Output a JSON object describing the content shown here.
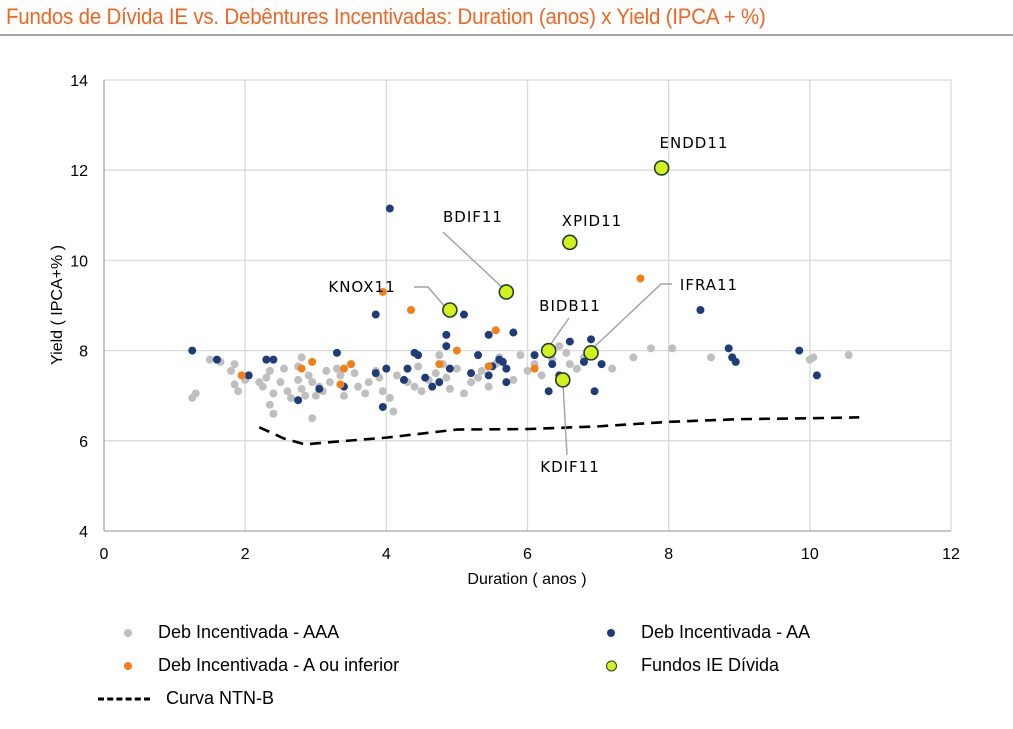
{
  "page": {
    "title": "Fundos de Dívida IE vs. Debêntures Incentivadas: Duration (anos) x Yield (IPCA + %)"
  },
  "colors": {
    "title": "#f26522",
    "aaa": "#bfbfbf",
    "aa": "#1f3c7a",
    "a_or_lower": "#f57f17",
    "funds_fill": "#d4f21a",
    "funds_stroke": "#1f3f38",
    "ntnb": "#000000",
    "grid": "#d9d9d9"
  },
  "legend": {
    "items": [
      {
        "key": "aaa",
        "label": "Deb Incentivada - AAA",
        "marker": "dot"
      },
      {
        "key": "aa",
        "label": "Deb Incentivada - AA",
        "marker": "dot"
      },
      {
        "key": "a_or_lower",
        "label": "Deb Incentivada - A ou inferior",
        "marker": "dot"
      },
      {
        "key": "funds",
        "label": "Fundos IE Dívida",
        "marker": "ring"
      },
      {
        "key": "ntnb",
        "label": "Curva NTN-B",
        "marker": "dash"
      }
    ]
  },
  "chart_data": {
    "type": "scatter",
    "title": "Fundos de Dívida IE vs. Debêntures Incentivadas: Duration (anos) x Yield (IPCA + %)",
    "xlabel": "Duration ( anos )",
    "ylabel": "Yield ( IPCA+% )",
    "xlim": [
      0,
      12
    ],
    "ylim": [
      4,
      14
    ],
    "xticks": [
      "0",
      "2",
      "4",
      "6",
      "8",
      "10",
      "12"
    ],
    "yticks": [
      "4",
      "6",
      "8",
      "10",
      "12",
      "14"
    ],
    "grid": true,
    "legend_position": "bottom",
    "series": [
      {
        "name": "Deb Incentivada - AAA",
        "key": "aaa",
        "points": [
          [
            1.25,
            6.95
          ],
          [
            1.3,
            7.05
          ],
          [
            1.5,
            7.8
          ],
          [
            1.8,
            7.55
          ],
          [
            1.85,
            7.7
          ],
          [
            1.85,
            7.25
          ],
          [
            1.9,
            7.1
          ],
          [
            2.0,
            7.35
          ],
          [
            2.2,
            7.3
          ],
          [
            2.25,
            7.2
          ],
          [
            2.3,
            7.4
          ],
          [
            2.35,
            7.55
          ],
          [
            2.4,
            7.05
          ],
          [
            2.35,
            6.8
          ],
          [
            2.4,
            6.6
          ],
          [
            2.5,
            7.3
          ],
          [
            2.6,
            7.1
          ],
          [
            2.65,
            6.95
          ],
          [
            2.75,
            7.35
          ],
          [
            2.75,
            7.65
          ],
          [
            2.8,
            7.85
          ],
          [
            2.8,
            7.15
          ],
          [
            2.85,
            7.0
          ],
          [
            2.9,
            7.45
          ],
          [
            2.95,
            7.3
          ],
          [
            2.95,
            6.5
          ],
          [
            3.0,
            7.0
          ],
          [
            3.05,
            7.2
          ],
          [
            3.1,
            7.1
          ],
          [
            3.2,
            7.3
          ],
          [
            3.3,
            7.6
          ],
          [
            3.35,
            7.45
          ],
          [
            3.4,
            7.0
          ],
          [
            3.5,
            7.7
          ],
          [
            3.55,
            7.5
          ],
          [
            3.6,
            7.2
          ],
          [
            3.7,
            7.05
          ],
          [
            3.75,
            7.3
          ],
          [
            3.85,
            7.55
          ],
          [
            3.9,
            7.4
          ],
          [
            3.95,
            7.1
          ],
          [
            4.0,
            7.6
          ],
          [
            4.05,
            6.95
          ],
          [
            4.1,
            6.65
          ],
          [
            4.15,
            7.45
          ],
          [
            4.3,
            7.3
          ],
          [
            4.4,
            7.2
          ],
          [
            4.5,
            7.1
          ],
          [
            4.6,
            7.35
          ],
          [
            4.7,
            7.5
          ],
          [
            4.75,
            7.9
          ],
          [
            4.8,
            7.7
          ],
          [
            4.85,
            7.4
          ],
          [
            4.9,
            7.15
          ],
          [
            5.0,
            7.6
          ],
          [
            5.1,
            7.05
          ],
          [
            5.2,
            7.3
          ],
          [
            5.3,
            7.4
          ],
          [
            5.45,
            7.2
          ],
          [
            5.55,
            7.7
          ],
          [
            5.6,
            7.85
          ],
          [
            5.7,
            7.6
          ],
          [
            5.8,
            7.35
          ],
          [
            5.9,
            7.9
          ],
          [
            6.0,
            7.55
          ],
          [
            6.1,
            7.7
          ],
          [
            6.2,
            7.45
          ],
          [
            6.35,
            7.8
          ],
          [
            6.45,
            8.1
          ],
          [
            6.55,
            7.95
          ],
          [
            6.6,
            7.7
          ],
          [
            6.7,
            7.6
          ],
          [
            6.8,
            7.85
          ],
          [
            7.05,
            7.7
          ],
          [
            7.2,
            7.6
          ],
          [
            7.5,
            7.85
          ],
          [
            7.75,
            8.05
          ],
          [
            8.05,
            8.05
          ],
          [
            8.6,
            7.85
          ],
          [
            10.0,
            7.8
          ],
          [
            10.05,
            7.85
          ],
          [
            10.55,
            7.9
          ],
          [
            1.65,
            7.75
          ],
          [
            2.55,
            7.6
          ],
          [
            3.15,
            7.55
          ],
          [
            4.45,
            7.65
          ],
          [
            5.35,
            7.55
          ]
        ]
      },
      {
        "name": "Deb Incentivada - AA",
        "key": "aa",
        "points": [
          [
            1.25,
            8.0
          ],
          [
            1.6,
            7.8
          ],
          [
            2.05,
            7.45
          ],
          [
            2.3,
            7.8
          ],
          [
            2.4,
            7.8
          ],
          [
            2.75,
            6.9
          ],
          [
            3.05,
            7.15
          ],
          [
            3.3,
            7.95
          ],
          [
            3.4,
            7.2
          ],
          [
            3.85,
            8.8
          ],
          [
            3.85,
            7.5
          ],
          [
            3.95,
            6.75
          ],
          [
            4.05,
            11.15
          ],
          [
            4.25,
            7.35
          ],
          [
            4.3,
            7.6
          ],
          [
            4.4,
            7.95
          ],
          [
            4.45,
            7.9
          ],
          [
            4.55,
            7.4
          ],
          [
            4.65,
            7.2
          ],
          [
            4.75,
            7.3
          ],
          [
            4.85,
            8.1
          ],
          [
            4.85,
            8.35
          ],
          [
            4.9,
            7.6
          ],
          [
            5.1,
            8.8
          ],
          [
            5.2,
            7.5
          ],
          [
            5.3,
            7.9
          ],
          [
            5.45,
            8.35
          ],
          [
            5.5,
            7.65
          ],
          [
            5.6,
            7.8
          ],
          [
            5.65,
            7.75
          ],
          [
            5.7,
            7.6
          ],
          [
            5.7,
            7.3
          ],
          [
            5.8,
            8.4
          ],
          [
            6.1,
            7.9
          ],
          [
            6.3,
            7.1
          ],
          [
            6.35,
            7.7
          ],
          [
            6.45,
            7.45
          ],
          [
            6.6,
            8.2
          ],
          [
            6.8,
            7.75
          ],
          [
            6.9,
            8.25
          ],
          [
            6.95,
            7.1
          ],
          [
            7.05,
            7.7
          ],
          [
            8.45,
            8.9
          ],
          [
            8.85,
            8.05
          ],
          [
            8.9,
            7.85
          ],
          [
            8.95,
            7.75
          ],
          [
            9.85,
            8.0
          ],
          [
            10.1,
            7.45
          ],
          [
            4.0,
            7.6
          ],
          [
            5.45,
            7.45
          ]
        ]
      },
      {
        "name": "Deb Incentivada - A ou inferior",
        "key": "a_or_lower",
        "points": [
          [
            1.95,
            7.45
          ],
          [
            2.8,
            7.6
          ],
          [
            2.95,
            7.75
          ],
          [
            3.35,
            7.25
          ],
          [
            3.4,
            7.6
          ],
          [
            3.5,
            7.7
          ],
          [
            3.95,
            9.3
          ],
          [
            4.35,
            8.9
          ],
          [
            4.75,
            7.7
          ],
          [
            5.0,
            8.0
          ],
          [
            5.55,
            8.45
          ],
          [
            5.45,
            7.65
          ],
          [
            6.1,
            7.6
          ],
          [
            7.6,
            9.6
          ]
        ]
      },
      {
        "name": "Fundos IE Dívida",
        "key": "funds",
        "points": [
          {
            "label": "ENDD11",
            "x": 7.9,
            "y": 12.05
          },
          {
            "label": "XPID11",
            "x": 6.6,
            "y": 10.4
          },
          {
            "label": "BDIF11",
            "x": 5.7,
            "y": 9.3
          },
          {
            "label": "KNOX11",
            "x": 4.9,
            "y": 8.9
          },
          {
            "label": "BIDB11",
            "x": 6.3,
            "y": 8.0
          },
          {
            "label": "IFRA11",
            "x": 6.9,
            "y": 7.95
          },
          {
            "label": "KDIF11",
            "x": 6.5,
            "y": 7.35
          }
        ]
      },
      {
        "name": "Curva NTN-B",
        "key": "ntnb",
        "type": "line",
        "style": "dashed",
        "points": [
          [
            2.2,
            6.3
          ],
          [
            2.55,
            6.05
          ],
          [
            2.85,
            5.92
          ],
          [
            3.2,
            5.97
          ],
          [
            4.0,
            6.07
          ],
          [
            5.0,
            6.25
          ],
          [
            6.0,
            6.26
          ],
          [
            7.0,
            6.32
          ],
          [
            8.0,
            6.42
          ],
          [
            9.0,
            6.48
          ],
          [
            10.0,
            6.5
          ],
          [
            10.7,
            6.52
          ]
        ]
      }
    ]
  }
}
